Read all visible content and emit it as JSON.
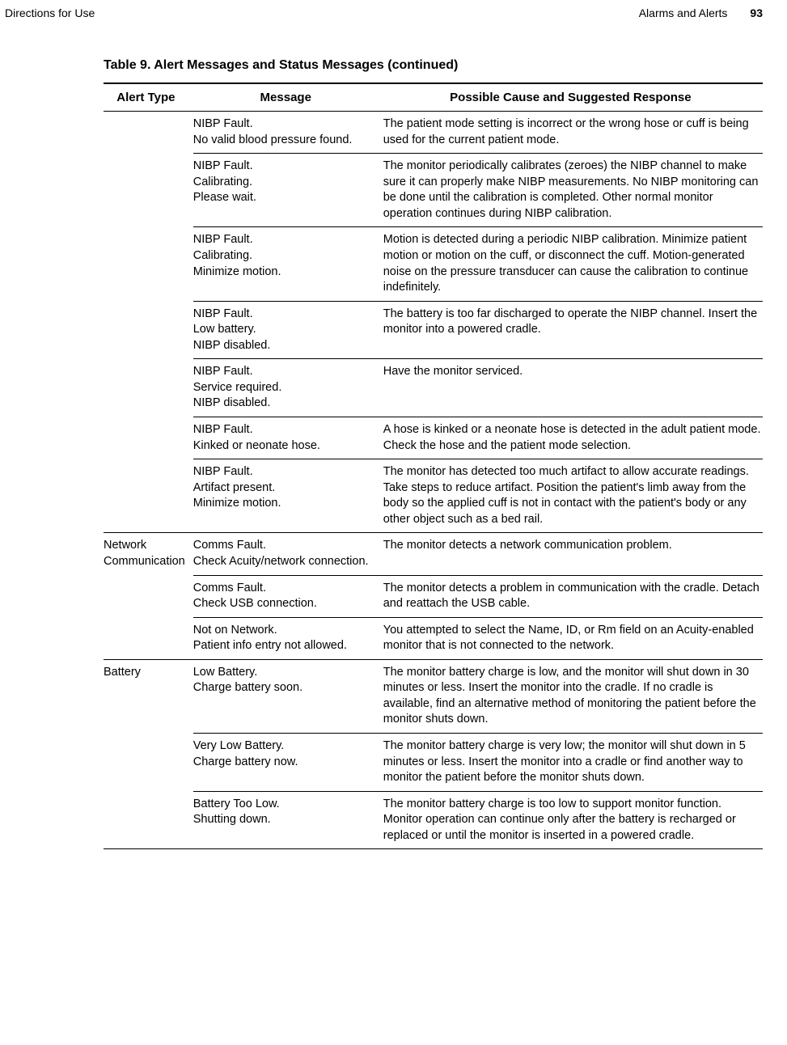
{
  "header": {
    "left": "Directions for Use",
    "section": "Alarms and Alerts",
    "page": "93"
  },
  "table": {
    "title": "Table 9.  Alert Messages and Status Messages (continued)",
    "columns": {
      "type": "Alert Type",
      "message": "Message",
      "response": "Possible Cause and Suggested Response"
    },
    "groups": [
      {
        "type": "",
        "rows": [
          {
            "message": "NIBP Fault.\nNo valid blood pressure found.",
            "response": "The patient mode setting is incorrect or the wrong hose or cuff is being used for the current patient mode."
          },
          {
            "message": "NIBP Fault.\nCalibrating.\nPlease wait.",
            "response": "The monitor periodically calibrates (zeroes) the NIBP channel to make sure it can properly make NIBP measurements. No NIBP monitoring can be done until the calibration is completed. Other normal monitor operation continues during NIBP calibration."
          },
          {
            "message": "NIBP Fault.\nCalibrating.\nMinimize motion.",
            "response": "Motion is detected during a periodic NIBP calibration. Minimize patient motion or motion on the cuff, or disconnect the cuff. Motion-generated noise on the pressure transducer can cause the calibration to continue indefinitely."
          },
          {
            "message": "NIBP Fault.\nLow battery.\nNIBP disabled.",
            "response": "The battery is too far discharged to operate the NIBP channel. Insert the monitor into a powered cradle."
          },
          {
            "message": "NIBP Fault.\nService required.\nNIBP disabled.",
            "response": "Have the monitor serviced."
          },
          {
            "message": "NIBP Fault.\nKinked or neonate hose.",
            "response": "A hose is kinked or a neonate hose is detected in the adult patient mode. Check the hose and the patient mode selection."
          },
          {
            "message": "NIBP Fault.\nArtifact present.\nMinimize motion.",
            "response": "The monitor has detected too much artifact to allow accurate readings. Take steps to reduce artifact. Position the patient's limb away from the body so the applied cuff is not in contact with the patient's body or any other object such as a bed rail."
          }
        ]
      },
      {
        "type": "Network Communication",
        "rows": [
          {
            "message": "Comms Fault.\nCheck Acuity/network connection.",
            "response": "The monitor detects a network communication problem."
          },
          {
            "message": "Comms Fault.\nCheck USB connection.",
            "response": "The monitor detects a problem in communication with the cradle. Detach and reattach the USB cable."
          },
          {
            "message": "Not on Network.\nPatient info entry not allowed.",
            "response": "You attempted to select the Name, ID, or Rm field on an Acuity-enabled monitor that is not connected to the network."
          }
        ]
      },
      {
        "type": "Battery",
        "rows": [
          {
            "message": "Low Battery.\nCharge battery soon.",
            "response": "The monitor battery charge is low, and the monitor will shut down in 30 minutes or less. Insert the monitor into the cradle. If no cradle is available, find an alternative method of monitoring the patient before the monitor shuts down."
          },
          {
            "message": "Very Low Battery.\nCharge battery now.",
            "response": "The monitor battery charge is very low; the monitor will shut down in 5 minutes or less. Insert the monitor into a cradle or find another way to monitor the patient before the monitor shuts down."
          },
          {
            "message": "Battery Too Low.\nShutting down.",
            "response": "The monitor battery charge is too low to support monitor function. Monitor operation can continue only after the battery is recharged or replaced or until the monitor is inserted in a powered cradle."
          }
        ]
      }
    ]
  }
}
